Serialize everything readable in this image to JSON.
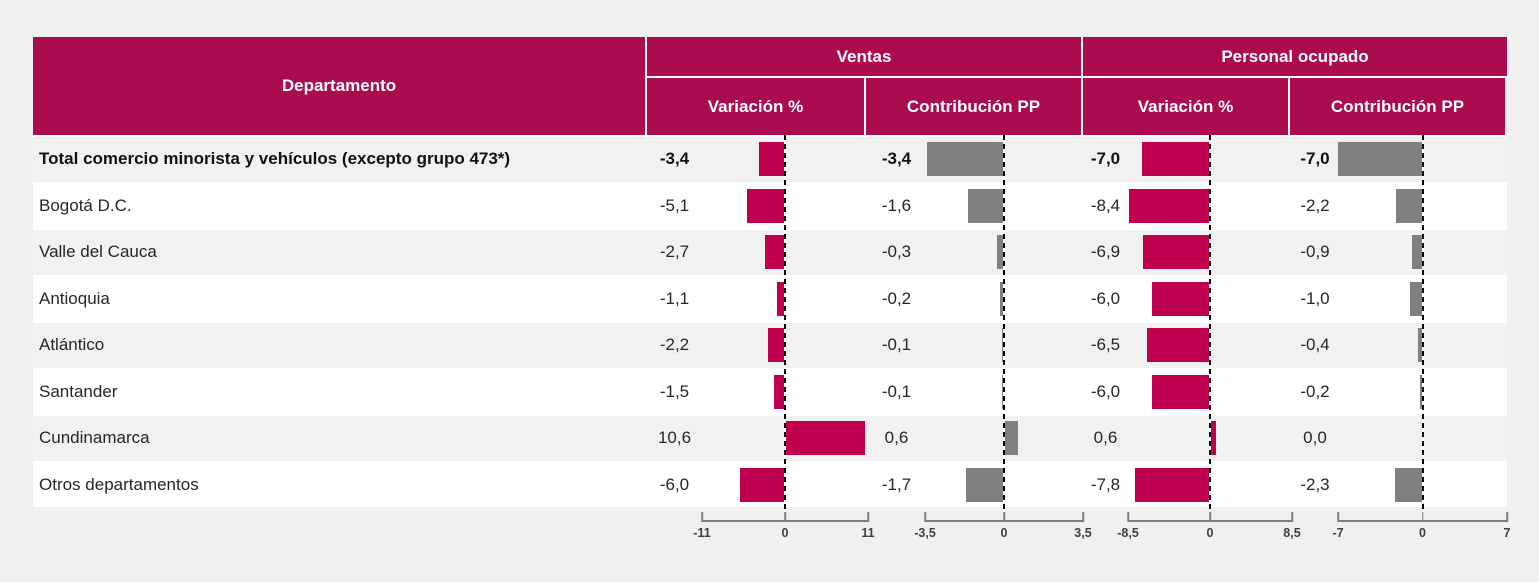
{
  "header": {
    "department": "Departamento",
    "group_ventas": "Ventas",
    "group_personal": "Personal ocupado",
    "sub_variacion": "Variación %",
    "sub_contribucion": "Contribución PP"
  },
  "colors": {
    "header_bg": "#ab0b4f",
    "bar_pink": "#be004f",
    "bar_gray": "#808080",
    "row_alt": "#f1f1f1",
    "row_white": "#ffffff",
    "page_bg": "#f0f0f0"
  },
  "rows": [
    {
      "department": "Total comercio minorista  y vehículos (excepto grupo 473*)",
      "bold": true,
      "ventas_var": {
        "label": "-3,4",
        "value": -3.4
      },
      "ventas_contrib": {
        "label": "-3,4",
        "value": -3.4
      },
      "personal_var": {
        "label": "-7,0",
        "value": -7.0
      },
      "personal_contrib": {
        "label": "-7,0",
        "value": -7.0
      }
    },
    {
      "department": "Bogotá D.C.",
      "bold": false,
      "ventas_var": {
        "label": "-5,1",
        "value": -5.1
      },
      "ventas_contrib": {
        "label": "-1,6",
        "value": -1.6
      },
      "personal_var": {
        "label": "-8,4",
        "value": -8.4
      },
      "personal_contrib": {
        "label": "-2,2",
        "value": -2.2
      }
    },
    {
      "department": "Valle del Cauca",
      "bold": false,
      "ventas_var": {
        "label": "-2,7",
        "value": -2.7
      },
      "ventas_contrib": {
        "label": "-0,3",
        "value": -0.3
      },
      "personal_var": {
        "label": "-6,9",
        "value": -6.9
      },
      "personal_contrib": {
        "label": "-0,9",
        "value": -0.9
      }
    },
    {
      "department": "Antioquia",
      "bold": false,
      "ventas_var": {
        "label": "-1,1",
        "value": -1.1
      },
      "ventas_contrib": {
        "label": "-0,2",
        "value": -0.2
      },
      "personal_var": {
        "label": "-6,0",
        "value": -6.0
      },
      "personal_contrib": {
        "label": "-1,0",
        "value": -1.0
      }
    },
    {
      "department": "Atlántico",
      "bold": false,
      "ventas_var": {
        "label": "-2,2",
        "value": -2.2
      },
      "ventas_contrib": {
        "label": "-0,1",
        "value": -0.1
      },
      "personal_var": {
        "label": "-6,5",
        "value": -6.5
      },
      "personal_contrib": {
        "label": "-0,4",
        "value": -0.4
      }
    },
    {
      "department": "Santander",
      "bold": false,
      "ventas_var": {
        "label": "-1,5",
        "value": -1.5
      },
      "ventas_contrib": {
        "label": "-0,1",
        "value": -0.1
      },
      "personal_var": {
        "label": "-6,0",
        "value": -6.0
      },
      "personal_contrib": {
        "label": "-0,2",
        "value": -0.2
      }
    },
    {
      "department": "Cundinamarca",
      "bold": false,
      "ventas_var": {
        "label": "10,6",
        "value": 10.6
      },
      "ventas_contrib": {
        "label": "0,6",
        "value": 0.6
      },
      "personal_var": {
        "label": "0,6",
        "value": 0.6
      },
      "personal_contrib": {
        "label": "0,0",
        "value": 0.0
      }
    },
    {
      "department": "Otros departamentos",
      "bold": false,
      "ventas_var": {
        "label": "-6,0",
        "value": -6.0
      },
      "ventas_contrib": {
        "label": "-1,7",
        "value": -1.7
      },
      "personal_var": {
        "label": "-7,8",
        "value": -7.8
      },
      "personal_contrib": {
        "label": "-2,3",
        "value": -2.3
      }
    }
  ],
  "axes": [
    {
      "key": "ventas_var",
      "min_label": "-11",
      "zero_label": "0",
      "max_label": "11",
      "max_value": 11
    },
    {
      "key": "ventas_contrib",
      "min_label": "-3,5",
      "zero_label": "0",
      "max_label": "3,5",
      "max_value": 3.5
    },
    {
      "key": "personal_var",
      "min_label": "-8,5",
      "zero_label": "0",
      "max_label": "8,5",
      "max_value": 8.5
    },
    {
      "key": "personal_contrib",
      "min_label": "-7",
      "zero_label": "0",
      "max_label": "7",
      "max_value": 7
    }
  ],
  "chart_data": {
    "type": "bar",
    "orientation": "horizontal",
    "categories": [
      "Total comercio minorista  y vehículos (excepto grupo 473*)",
      "Bogotá D.C.",
      "Valle del Cauca",
      "Antioquia",
      "Atlántico",
      "Santander",
      "Cundinamarca",
      "Otros departamentos"
    ],
    "series": [
      {
        "name": "Ventas Variación %",
        "values": [
          -3.4,
          -5.1,
          -2.7,
          -1.1,
          -2.2,
          -1.5,
          10.6,
          -6.0
        ],
        "xlim": [
          -11,
          11
        ],
        "color": "#be004f"
      },
      {
        "name": "Ventas Contribución PP",
        "values": [
          -3.4,
          -1.6,
          -0.3,
          -0.2,
          -0.1,
          -0.1,
          0.6,
          -1.7
        ],
        "xlim": [
          -3.5,
          3.5
        ],
        "color": "#808080"
      },
      {
        "name": "Personal ocupado Variación %",
        "values": [
          -7.0,
          -8.4,
          -6.9,
          -6.0,
          -6.5,
          -6.0,
          0.6,
          -7.8
        ],
        "xlim": [
          -8.5,
          8.5
        ],
        "color": "#be004f"
      },
      {
        "name": "Personal ocupado Contribución PP",
        "values": [
          -7.0,
          -2.2,
          -0.9,
          -1.0,
          -0.4,
          -0.2,
          0.0,
          -2.3
        ],
        "xlim": [
          -7,
          7
        ],
        "color": "#808080"
      }
    ],
    "title": "",
    "legend_position": "none",
    "grid": false
  }
}
